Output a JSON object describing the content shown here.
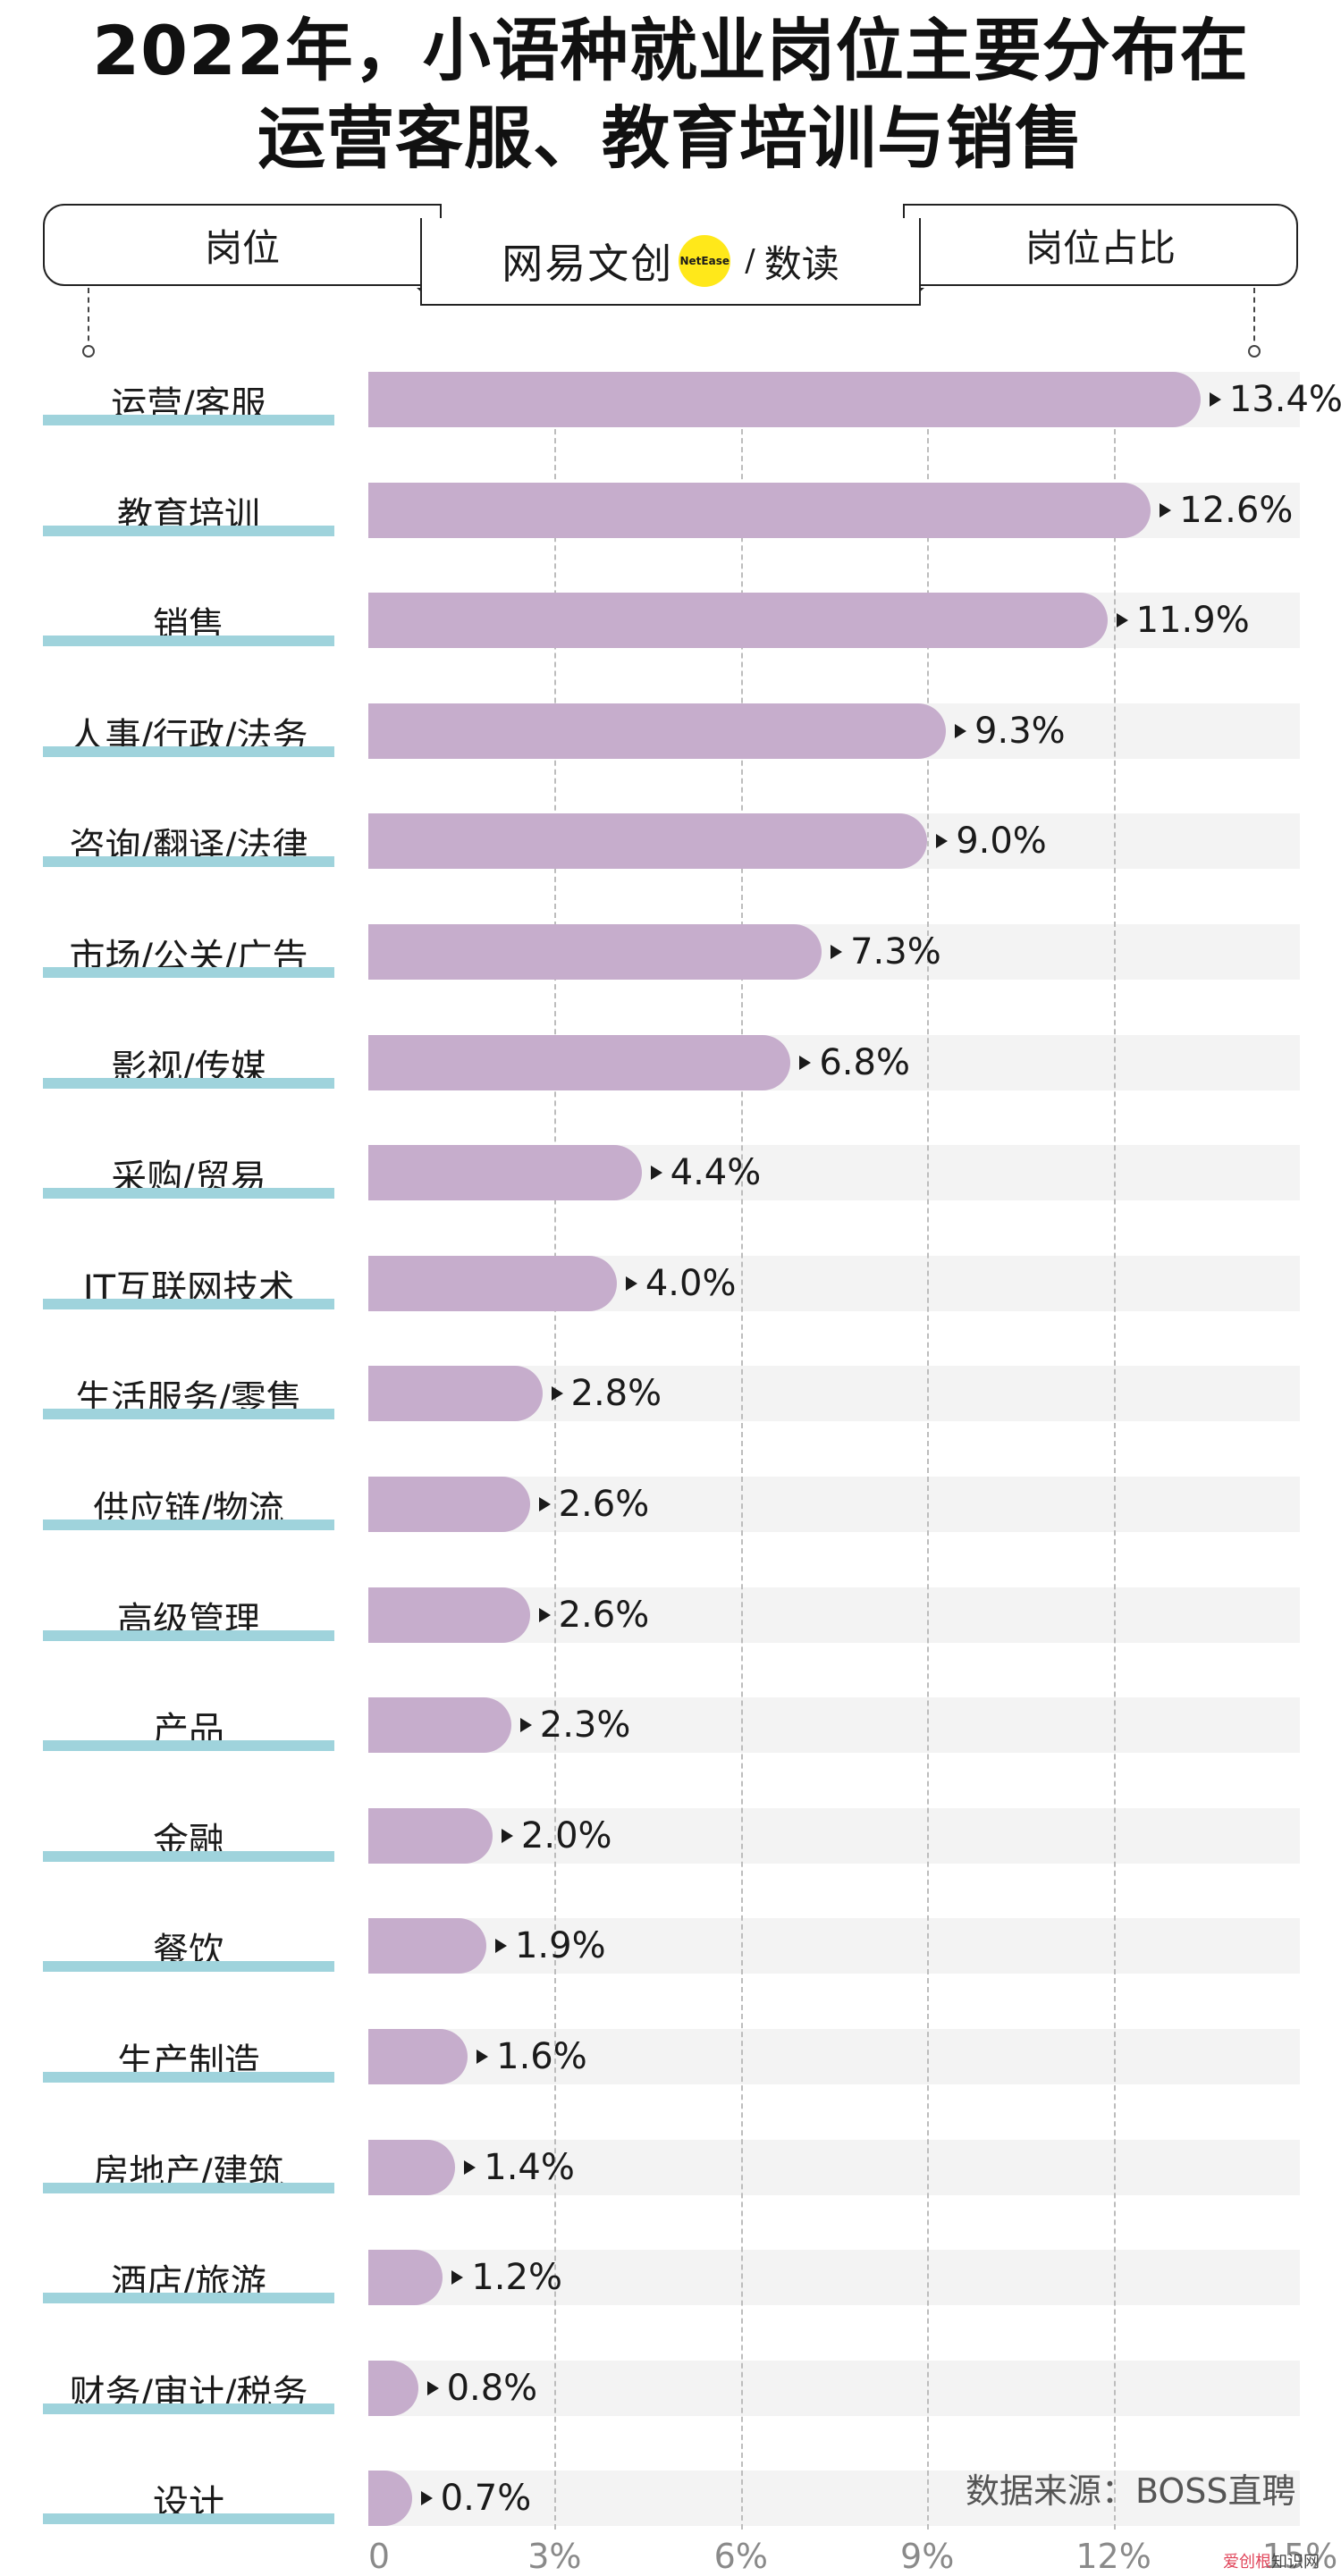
{
  "header": {
    "title_line1": "2022年，小语种就业岗位主要分布在",
    "title_line2": "运营客服、教育培训与销售",
    "col_left": "岗位",
    "col_right": "岗位占比"
  },
  "logo": {
    "brand": "网易文创",
    "circle_text": "NetEase",
    "separator": "/",
    "sub": "数读"
  },
  "chart_data": {
    "type": "bar",
    "orientation": "horizontal",
    "categories": [
      "运营/客服",
      "教育培训",
      "销售",
      "人事/行政/法务",
      "咨询/翻译/法律",
      "市场/公关/广告",
      "影视/传媒",
      "采购/贸易",
      "IT互联网技术",
      "生活服务/零售",
      "供应链/物流",
      "高级管理",
      "产品",
      "金融",
      "餐饮",
      "生产制造",
      "房地产/建筑",
      "酒店/旅游",
      "财务/审计/税务",
      "设计"
    ],
    "values": [
      13.4,
      12.6,
      11.9,
      9.3,
      9.0,
      7.3,
      6.8,
      4.4,
      4.0,
      2.8,
      2.6,
      2.6,
      2.3,
      2.0,
      1.9,
      1.6,
      1.4,
      1.2,
      0.8,
      0.7
    ],
    "value_labels": [
      "13.4%",
      "12.6%",
      "11.9%",
      "9.3%",
      "9.0%",
      "7.3%",
      "6.8%",
      "4.4%",
      "4.0%",
      "2.8%",
      "2.6%",
      "2.6%",
      "2.3%",
      "2.0%",
      "1.9%",
      "1.6%",
      "1.4%",
      "1.2%",
      "0.8%",
      "0.7%"
    ],
    "x_ticks": [
      "0",
      "3%",
      "6%",
      "9%",
      "12%",
      "15%"
    ],
    "xlim": [
      0,
      15
    ],
    "grid": true,
    "colors": {
      "bar": "#c6adcc",
      "track": "#f3f3f3",
      "label_underline": "#9fd3dc",
      "grid": "#bdbdbd"
    }
  },
  "footer": {
    "source": "数据来源：BOSS直聘",
    "watermark_a": "爱创根",
    "watermark_b": "知识网"
  }
}
